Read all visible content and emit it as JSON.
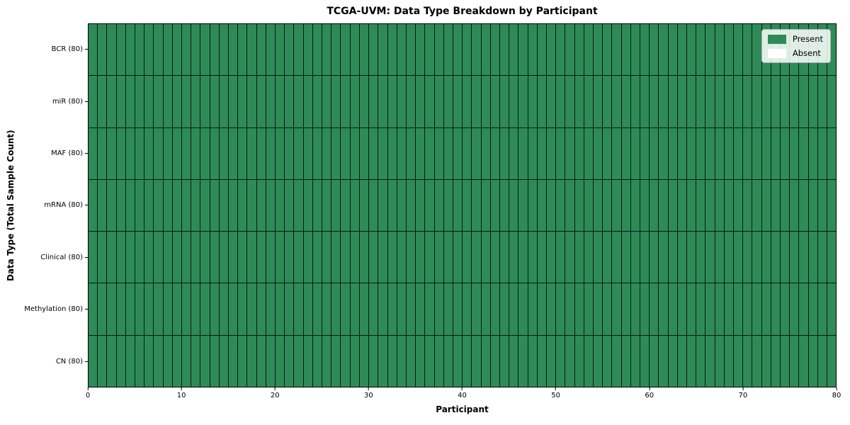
{
  "chart_data": {
    "type": "heatmap",
    "title": "TCGA-UVM: Data Type Breakdown by Participant",
    "xlabel": "Participant",
    "ylabel": "Data Type (Total Sample Count)",
    "rows": [
      "BCR (80)",
      "miR (80)",
      "MAF (80)",
      "mRNA (80)",
      "Clinical (80)",
      "Methylation (80)",
      "CN (80)"
    ],
    "n_participants": 80,
    "present_counts": [
      80,
      80,
      80,
      80,
      80,
      80,
      80
    ],
    "x_ticks": [
      0,
      10,
      20,
      30,
      40,
      50,
      60,
      70,
      80
    ],
    "xlim": [
      0,
      80
    ],
    "grid_lines": "on",
    "legend": {
      "position": "upper right",
      "entries": [
        {
          "label": "Present",
          "color": "#2E8B57"
        },
        {
          "label": "Absent",
          "color": "#FFFFFF"
        }
      ]
    },
    "colors": {
      "present": "#2E8B57",
      "absent": "#FFFFFF",
      "cell_border": "#000000",
      "spine": "#000000"
    }
  }
}
